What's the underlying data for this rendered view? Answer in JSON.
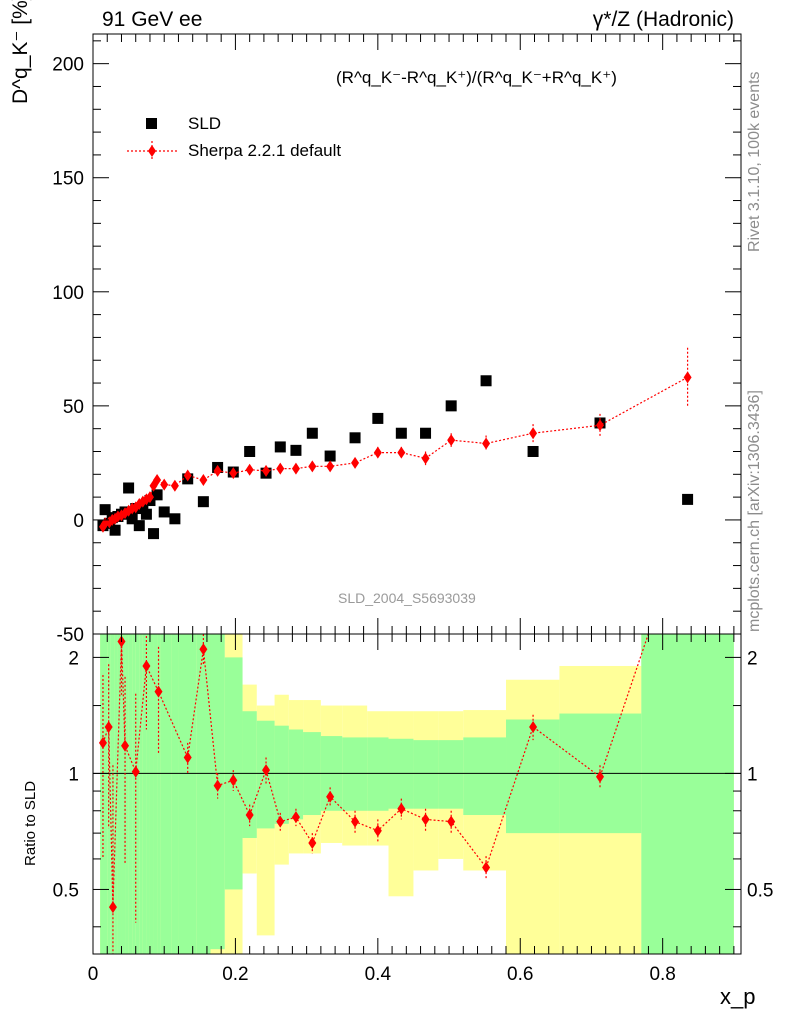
{
  "titles": {
    "left": "91 GeV ee",
    "right": "γ*/Z (Hadronic)",
    "formula": "(R^q_K⁻-R^q_K⁺)/(R^q_K⁻+R^q_K⁺)",
    "side_rivet": "Rivet 3.1.10,  100k events",
    "side_mcplots": "mcplots.cern.ch [arXiv:1306.3436]",
    "watermark": "SLD_2004_S5693039"
  },
  "colors": {
    "sld": "#000000",
    "sherpa": "#ff0000",
    "band_inner": "#99ff99",
    "band_outer": "#ffff99"
  },
  "chart_data": [
    {
      "type": "scatter",
      "title": "",
      "xlabel": "x_p",
      "ylabel": "D^q_K⁻ [%]",
      "xlim": [
        0,
        0.91
      ],
      "ylim": [
        -50,
        213
      ],
      "yticks": [
        -50,
        0,
        50,
        100,
        150,
        200
      ],
      "xticks": [
        0,
        0.2,
        0.4,
        0.6,
        0.8
      ],
      "legend_position": "top-left",
      "series": [
        {
          "name": "SLD",
          "marker": "square",
          "x": [
            0.014,
            0.017,
            0.023,
            0.027,
            0.031,
            0.035,
            0.04,
            0.045,
            0.05,
            0.055,
            0.06,
            0.065,
            0.07,
            0.075,
            0.08,
            0.085,
            0.09,
            0.1,
            0.115,
            0.133,
            0.155,
            0.175,
            0.197,
            0.22,
            0.243,
            0.263,
            0.285,
            0.308,
            0.333,
            0.368,
            0.4,
            0.433,
            0.467,
            0.503,
            0.552,
            0.618,
            0.712,
            0.835
          ],
          "y": [
            -2.5,
            4.5,
            -1.5,
            1.0,
            -4.5,
            1.5,
            2.5,
            3.5,
            14.0,
            0.5,
            5.0,
            -2.5,
            5.0,
            2.5,
            8.5,
            -6.0,
            11.0,
            3.5,
            0.5,
            18.0,
            8.0,
            23.0,
            21.0,
            30.0,
            20.5,
            32.0,
            30.5,
            38.0,
            28.0,
            36.0,
            44.5,
            38.0,
            38.0,
            50.0,
            61.0,
            30.0,
            42.5,
            9.0
          ]
        },
        {
          "name": "Sherpa 2.2.1 default",
          "marker": "diamond",
          "x": [
            0.014,
            0.017,
            0.023,
            0.027,
            0.031,
            0.035,
            0.04,
            0.045,
            0.05,
            0.055,
            0.06,
            0.065,
            0.07,
            0.075,
            0.08,
            0.085,
            0.09,
            0.1,
            0.115,
            0.133,
            0.155,
            0.175,
            0.197,
            0.22,
            0.243,
            0.263,
            0.285,
            0.308,
            0.333,
            0.368,
            0.4,
            0.433,
            0.467,
            0.503,
            0.552,
            0.618,
            0.712,
            0.835
          ],
          "y": [
            -3.0,
            -1.5,
            -1.0,
            0.0,
            0.5,
            1.5,
            2.0,
            3.0,
            4.0,
            5.0,
            5.5,
            7.0,
            8.0,
            9.0,
            10.0,
            15.0,
            17.5,
            15.5,
            15.0,
            19.5,
            17.5,
            21.5,
            20.5,
            22.0,
            21.5,
            22.5,
            22.5,
            23.5,
            23.5,
            25.0,
            29.5,
            29.5,
            27.0,
            35.0,
            33.5,
            38.0,
            41.5,
            62.5
          ],
          "yerr": [
            0.8,
            0.8,
            0.8,
            0.8,
            0.8,
            0.8,
            0.8,
            0.8,
            0.8,
            0.8,
            0.8,
            0.8,
            0.8,
            0.8,
            1.0,
            1.0,
            1.2,
            1.2,
            1.2,
            1.5,
            1.5,
            1.5,
            1.5,
            1.5,
            1.5,
            1.8,
            1.8,
            1.8,
            2.0,
            2.0,
            2.5,
            2.5,
            3.0,
            3.0,
            3.5,
            4.0,
            5.0,
            13.0
          ]
        }
      ]
    },
    {
      "type": "line",
      "title": "",
      "xlabel": "x_p",
      "ylabel": "Ratio to SLD",
      "xlim": [
        0,
        0.91
      ],
      "ylim": [
        0.34,
        2.3
      ],
      "yscale": "log",
      "yticks": [
        0.5,
        1,
        2
      ],
      "xticks": [
        0,
        0.2,
        0.4,
        0.6,
        0.8
      ],
      "reference_line": 1,
      "bands": {
        "edges": [
          0.01,
          0.02,
          0.025,
          0.03,
          0.035,
          0.04,
          0.045,
          0.05,
          0.055,
          0.06,
          0.065,
          0.07,
          0.075,
          0.08,
          0.085,
          0.09,
          0.095,
          0.11,
          0.12,
          0.145,
          0.165,
          0.185,
          0.21,
          0.23,
          0.255,
          0.275,
          0.295,
          0.32,
          0.35,
          0.385,
          0.415,
          0.45,
          0.485,
          0.52,
          0.58,
          0.655,
          0.77,
          0.9
        ],
        "inner_low": [
          0.2,
          0.2,
          0.2,
          0.2,
          0.2,
          0.2,
          0.2,
          0.2,
          0.2,
          0.2,
          0.2,
          0.2,
          0.2,
          0.2,
          0.2,
          0.2,
          0.2,
          0.2,
          0.2,
          0.3,
          0.35,
          0.5,
          0.68,
          0.72,
          0.74,
          0.76,
          0.78,
          0.8,
          0.8,
          0.8,
          0.81,
          0.81,
          0.81,
          0.78,
          0.7,
          0.7,
          0.2
        ],
        "inner_high": [
          5.0,
          5.0,
          5.0,
          5.0,
          5.0,
          5.0,
          5.0,
          5.0,
          5.0,
          5.0,
          5.0,
          5.0,
          5.0,
          5.0,
          5.0,
          5.0,
          5.0,
          5.0,
          5.0,
          3.3,
          2.8,
          2.0,
          1.45,
          1.37,
          1.33,
          1.3,
          1.28,
          1.25,
          1.24,
          1.24,
          1.23,
          1.22,
          1.22,
          1.24,
          1.38,
          1.43,
          5.0
        ],
        "outer_low": [
          0.2,
          0.2,
          0.2,
          0.2,
          0.2,
          0.2,
          0.2,
          0.2,
          0.2,
          0.2,
          0.2,
          0.2,
          0.2,
          0.2,
          0.2,
          0.2,
          0.2,
          0.2,
          0.2,
          0.2,
          0.2,
          0.2,
          0.55,
          0.38,
          0.58,
          0.62,
          0.62,
          0.66,
          0.65,
          0.65,
          0.48,
          0.56,
          0.6,
          0.56,
          0.2,
          0.2,
          0.2
        ],
        "outer_high": [
          5.0,
          5.0,
          5.0,
          5.0,
          5.0,
          5.0,
          5.0,
          5.0,
          5.0,
          5.0,
          5.0,
          5.0,
          5.0,
          5.0,
          5.0,
          5.0,
          5.0,
          5.0,
          5.0,
          5.0,
          5.0,
          5.0,
          1.7,
          1.5,
          1.6,
          1.55,
          1.55,
          1.5,
          1.5,
          1.45,
          1.45,
          1.45,
          1.45,
          1.46,
          1.75,
          1.9,
          5.0
        ]
      },
      "series": [
        {
          "name": "Sherpa 2.2.1 default",
          "x": [
            0.014,
            0.022,
            0.028,
            0.04,
            0.045,
            0.06,
            0.075,
            0.092,
            0.133,
            0.155,
            0.175,
            0.197,
            0.22,
            0.243,
            0.263,
            0.285,
            0.308,
            0.333,
            0.368,
            0.4,
            0.433,
            0.467,
            0.503,
            0.552,
            0.618,
            0.712,
            0.835
          ],
          "y": [
            1.2,
            1.32,
            0.45,
            2.2,
            1.18,
            1.01,
            1.9,
            1.63,
            1.1,
            2.1,
            0.93,
            0.96,
            0.78,
            1.02,
            0.75,
            0.77,
            0.66,
            0.87,
            0.75,
            0.71,
            0.81,
            0.76,
            0.75,
            0.57,
            1.32,
            0.98,
            5.0
          ],
          "yerr": [
            0.6,
            0.6,
            0.6,
            0.6,
            0.6,
            0.6,
            0.6,
            0.5,
            0.1,
            0.2,
            0.07,
            0.06,
            0.05,
            0.08,
            0.04,
            0.04,
            0.04,
            0.05,
            0.05,
            0.05,
            0.05,
            0.05,
            0.05,
            0.04,
            0.1,
            0.07,
            0.5
          ]
        }
      ]
    }
  ]
}
